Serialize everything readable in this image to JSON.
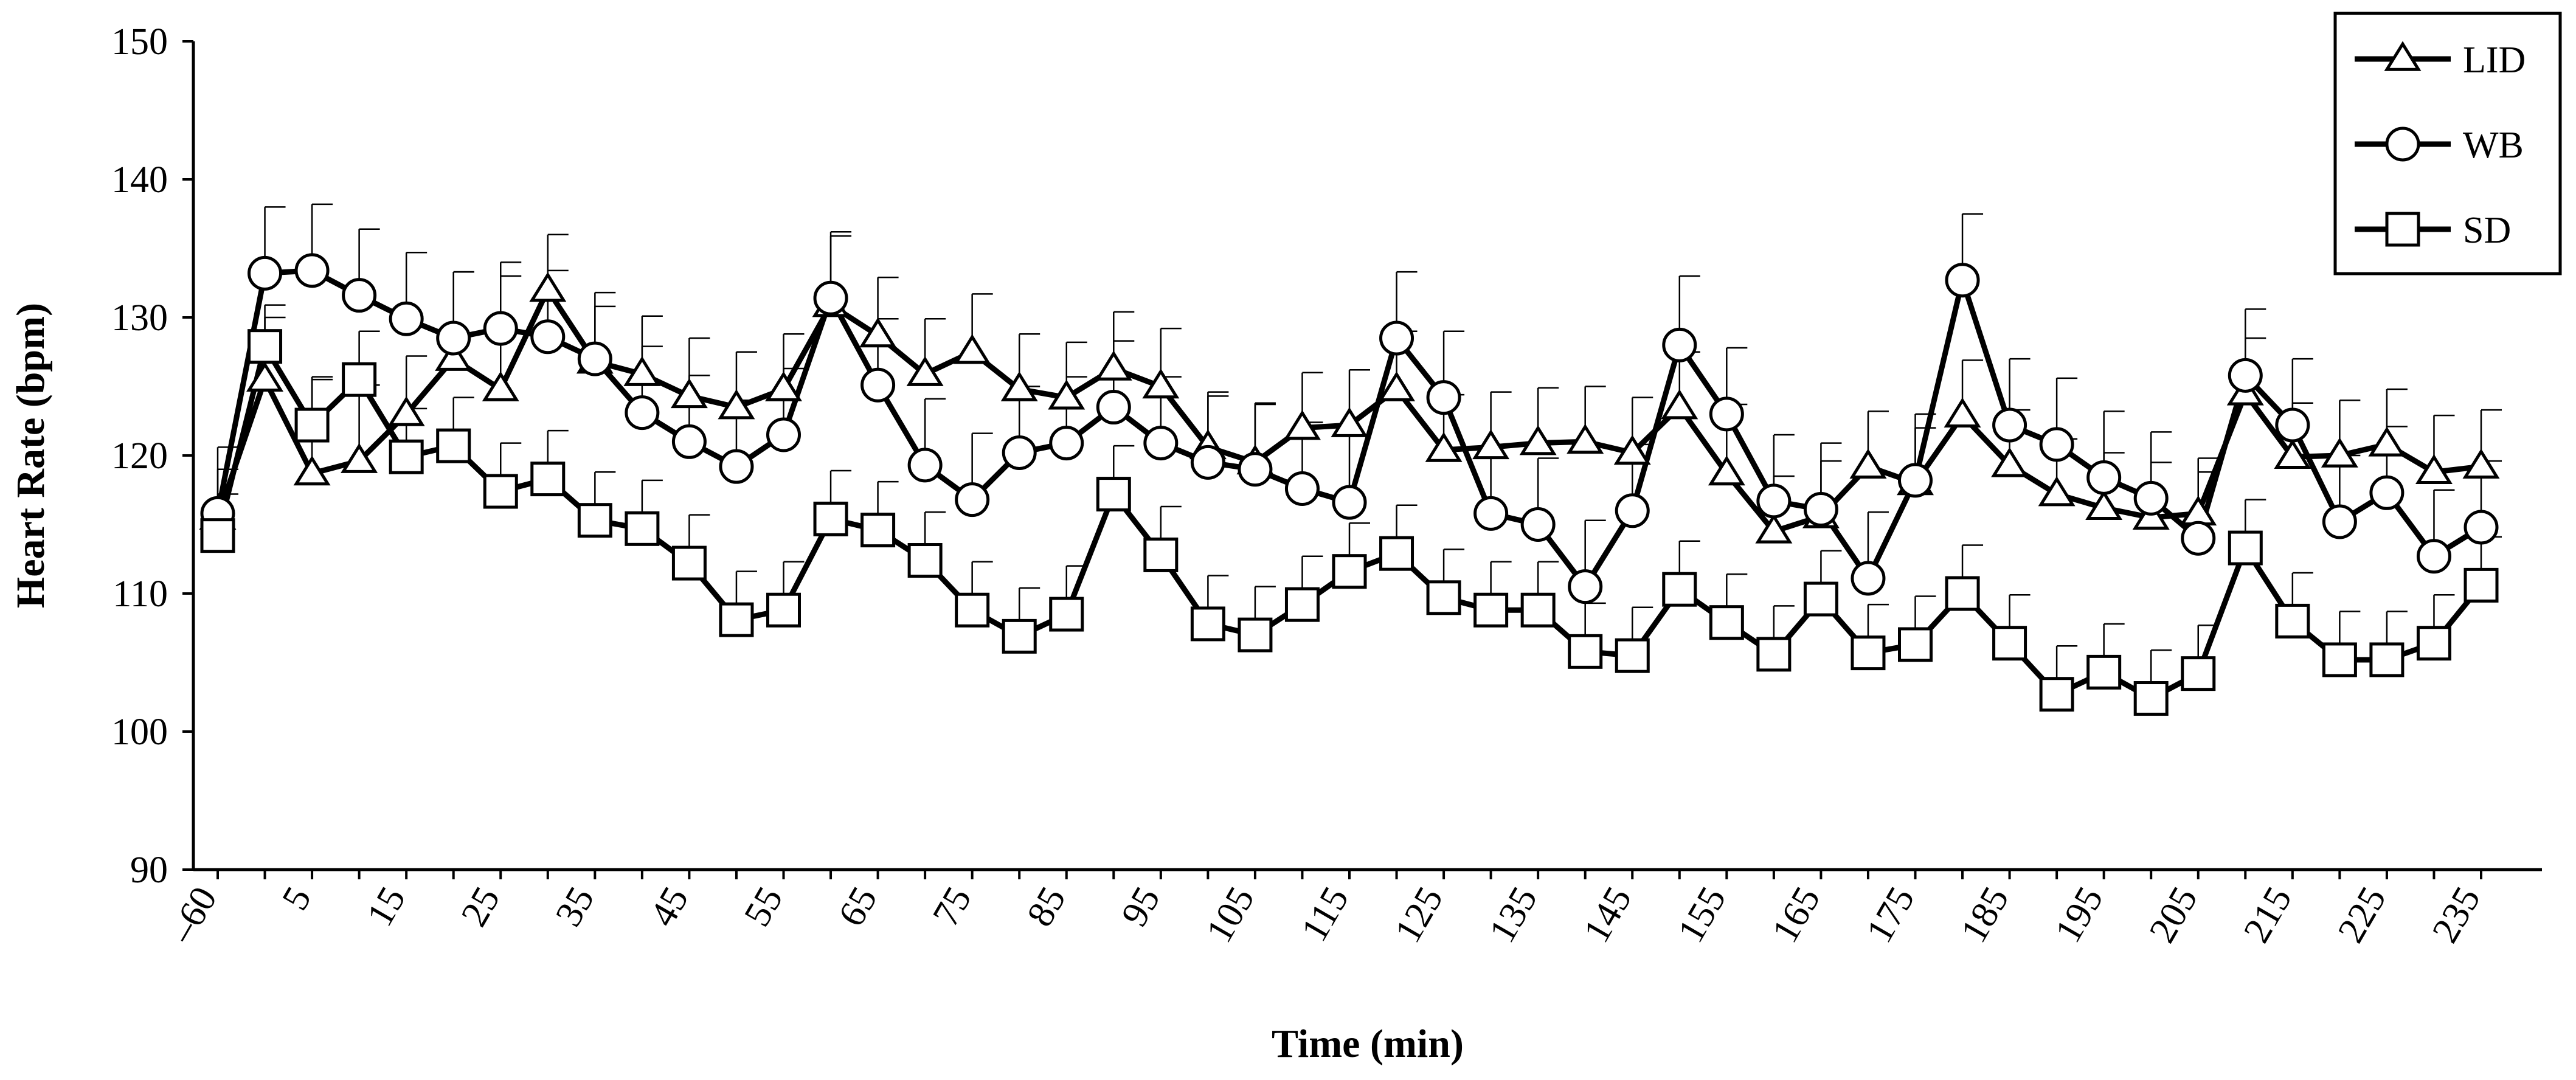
{
  "chart_data": {
    "type": "line",
    "title": "",
    "xlabel": "Time (min)",
    "ylabel": "Heart Rate (bpm)",
    "ylim": [
      90,
      150
    ],
    "yticks": [
      90,
      100,
      110,
      120,
      130,
      140,
      150
    ],
    "x": [
      -60,
      0,
      5,
      10,
      15,
      20,
      25,
      30,
      35,
      40,
      45,
      50,
      55,
      60,
      65,
      70,
      75,
      80,
      85,
      90,
      95,
      100,
      105,
      110,
      115,
      120,
      125,
      130,
      135,
      140,
      145,
      150,
      155,
      160,
      165,
      170,
      175,
      180,
      185,
      190,
      195,
      200,
      205,
      210,
      215,
      220,
      225,
      230,
      235
    ],
    "xtick_labels": [
      "–60",
      "5",
      "15",
      "25",
      "35",
      "45",
      "55",
      "65",
      "75",
      "85",
      "95",
      "105",
      "115",
      "125",
      "135",
      "145",
      "155",
      "165",
      "175",
      "185",
      "195",
      "205",
      "215",
      "225",
      "235"
    ],
    "legend_position": "top-right",
    "series": [
      {
        "name": "LID",
        "marker": "triangle",
        "values": [
          115.5,
          125.5,
          118.7,
          119.6,
          123.0,
          127.0,
          124.8,
          132.0,
          126.8,
          125.9,
          124.3,
          123.5,
          124.8,
          130.9,
          128.7,
          125.9,
          127.5,
          124.8,
          124.2,
          126.3,
          125.0,
          120.6,
          119.5,
          122.0,
          122.2,
          124.8,
          120.4,
          120.6,
          120.9,
          121.0,
          120.2,
          123.5,
          118.7,
          114.5,
          115.6,
          119.2,
          118.0,
          122.9,
          119.3,
          117.2,
          116.2,
          115.5,
          115.8,
          124.5,
          119.9,
          120.0,
          120.8,
          118.8,
          119.2
        ],
        "errors": [
          3.5,
          4.5,
          6.8,
          5.5,
          4.2,
          6.3,
          8.2,
          4.0,
          4.0,
          4.2,
          4.2,
          4.0,
          4.0,
          5.0,
          4.2,
          4.0,
          4.2,
          4.0,
          4.0,
          4.1,
          4.2,
          4.0,
          4.2,
          4.0,
          4.0,
          4.2,
          4.0,
          4.0,
          4.0,
          4.0,
          4.0,
          4.0,
          5.0,
          4.0,
          4.0,
          4.0,
          4.0,
          4.0,
          4.0,
          4.0,
          4.0,
          4.0,
          4.0,
          4.0,
          3.9,
          4.0,
          4.0,
          4.1,
          4.1
        ]
      },
      {
        "name": "WB",
        "marker": "circle",
        "values": [
          115.8,
          133.2,
          133.4,
          131.6,
          129.9,
          128.5,
          129.2,
          128.6,
          127.0,
          123.1,
          121.0,
          119.2,
          121.5,
          131.4,
          125.1,
          119.3,
          116.8,
          120.2,
          120.9,
          123.5,
          120.9,
          119.5,
          119.0,
          117.6,
          116.6,
          128.5,
          124.2,
          115.8,
          115.0,
          110.5,
          116.0,
          128.0,
          123.0,
          116.7,
          116.1,
          111.1,
          118.2,
          132.7,
          122.2,
          120.8,
          118.4,
          116.9,
          114.0,
          125.8,
          122.2,
          115.2,
          117.3,
          112.7,
          114.8
        ],
        "errors": [
          4.8,
          4.8,
          4.8,
          4.8,
          4.8,
          4.8,
          4.8,
          4.8,
          4.8,
          4.8,
          4.8,
          4.8,
          4.8,
          4.8,
          4.8,
          4.8,
          4.8,
          4.8,
          4.8,
          4.8,
          4.8,
          4.8,
          4.8,
          4.8,
          4.8,
          4.8,
          4.8,
          4.8,
          4.8,
          4.8,
          4.8,
          5.0,
          4.8,
          4.8,
          4.8,
          4.8,
          4.8,
          4.8,
          4.8,
          4.8,
          4.8,
          4.8,
          4.8,
          4.8,
          4.8,
          4.8,
          4.8,
          4.8,
          4.8
        ]
      },
      {
        "name": "SD",
        "marker": "square",
        "values": [
          114.2,
          127.9,
          122.2,
          125.5,
          119.9,
          120.7,
          117.4,
          118.3,
          115.3,
          114.7,
          112.2,
          108.1,
          108.8,
          115.4,
          114.6,
          112.4,
          108.8,
          106.9,
          108.5,
          117.2,
          112.8,
          107.8,
          107.0,
          109.2,
          111.6,
          112.9,
          109.7,
          108.8,
          108.8,
          105.8,
          105.5,
          110.3,
          107.9,
          105.6,
          109.6,
          105.7,
          106.3,
          110.0,
          106.4,
          102.7,
          104.3,
          102.4,
          104.2,
          113.3,
          108.0,
          105.2,
          105.2,
          106.4,
          110.6
        ],
        "errors": [
          3.0,
          3.0,
          3.5,
          3.5,
          3.5,
          3.5,
          3.5,
          3.5,
          3.5,
          3.5,
          3.5,
          3.5,
          3.5,
          3.5,
          3.5,
          3.5,
          3.5,
          3.5,
          3.5,
          3.5,
          3.5,
          3.5,
          3.5,
          3.5,
          3.5,
          3.5,
          3.5,
          3.5,
          3.5,
          3.5,
          3.5,
          3.5,
          3.5,
          3.5,
          3.5,
          3.5,
          3.5,
          3.5,
          3.5,
          3.5,
          3.5,
          3.5,
          3.5,
          3.5,
          3.5,
          3.5,
          3.5,
          3.5,
          3.5
        ]
      }
    ]
  }
}
